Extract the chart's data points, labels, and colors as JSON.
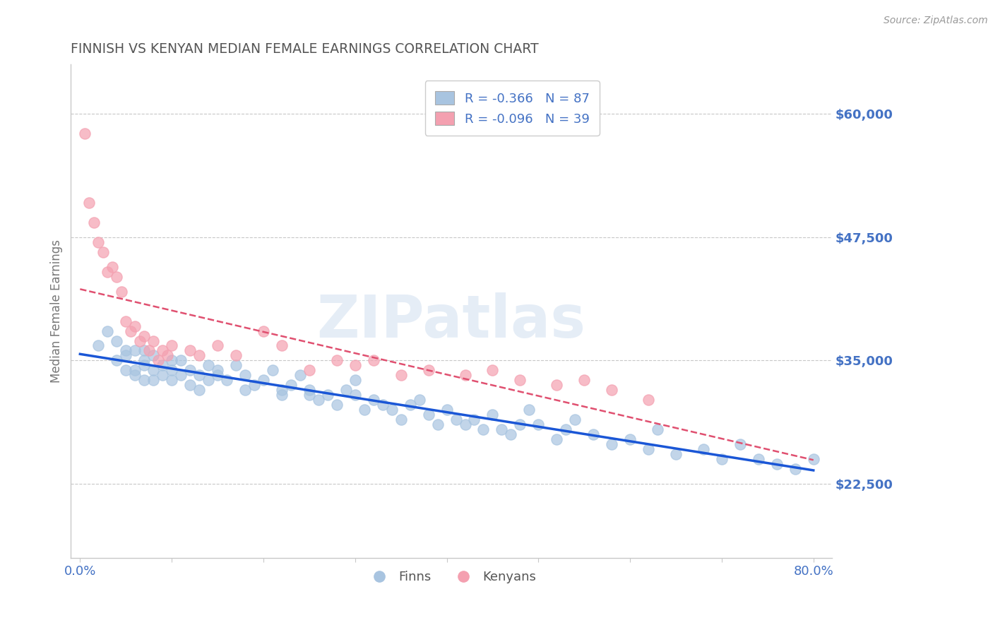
{
  "title": "FINNISH VS KENYAN MEDIAN FEMALE EARNINGS CORRELATION CHART",
  "source": "Source: ZipAtlas.com",
  "ylabel": "Median Female Earnings",
  "xlim": [
    -0.01,
    0.82
  ],
  "ylim": [
    15000,
    65000
  ],
  "yticks": [
    22500,
    35000,
    47500,
    60000
  ],
  "ytick_labels": [
    "$22,500",
    "$35,000",
    "$47,500",
    "$60,000"
  ],
  "xticks": [
    0.0,
    0.1,
    0.2,
    0.3,
    0.4,
    0.5,
    0.6,
    0.7,
    0.8
  ],
  "xtick_labels_show": [
    "0.0%",
    "",
    "",
    "",
    "",
    "",
    "",
    "",
    "80.0%"
  ],
  "finns_color": "#a8c4e0",
  "kenyans_color": "#f4a0b0",
  "finns_line_color": "#1a56d6",
  "kenyans_line_color": "#e05070",
  "grid_color": "#c8c8c8",
  "background_color": "#ffffff",
  "legend_r_finns": "R = -0.366",
  "legend_n_finns": "N = 87",
  "legend_r_kenyans": "R = -0.096",
  "legend_n_kenyans": "N = 39",
  "finns_label": "Finns",
  "kenyans_label": "Kenyans",
  "watermark": "ZIPatlas",
  "title_color": "#555555",
  "axis_label_color": "#777777",
  "tick_label_color_right": "#4472c4",
  "tick_label_color_x": "#4472c4",
  "finns_x": [
    0.02,
    0.03,
    0.04,
    0.04,
    0.05,
    0.05,
    0.05,
    0.06,
    0.06,
    0.06,
    0.07,
    0.07,
    0.07,
    0.07,
    0.08,
    0.08,
    0.08,
    0.09,
    0.09,
    0.1,
    0.1,
    0.1,
    0.11,
    0.11,
    0.12,
    0.12,
    0.13,
    0.13,
    0.14,
    0.14,
    0.15,
    0.15,
    0.16,
    0.17,
    0.18,
    0.18,
    0.19,
    0.2,
    0.21,
    0.22,
    0.22,
    0.23,
    0.24,
    0.25,
    0.25,
    0.26,
    0.27,
    0.28,
    0.29,
    0.3,
    0.3,
    0.31,
    0.32,
    0.33,
    0.34,
    0.35,
    0.36,
    0.37,
    0.38,
    0.39,
    0.4,
    0.41,
    0.42,
    0.43,
    0.44,
    0.45,
    0.46,
    0.47,
    0.48,
    0.49,
    0.5,
    0.52,
    0.53,
    0.54,
    0.56,
    0.58,
    0.6,
    0.62,
    0.63,
    0.65,
    0.68,
    0.7,
    0.72,
    0.74,
    0.76,
    0.78,
    0.8
  ],
  "finns_y": [
    36500,
    38000,
    37000,
    35000,
    36000,
    34000,
    35500,
    34000,
    36000,
    33500,
    34500,
    36000,
    35000,
    33000,
    34000,
    35500,
    33000,
    34500,
    33500,
    35000,
    33000,
    34000,
    33500,
    35000,
    32500,
    34000,
    33500,
    32000,
    34500,
    33000,
    34000,
    33500,
    33000,
    34500,
    32000,
    33500,
    32500,
    33000,
    34000,
    31500,
    32000,
    32500,
    33500,
    31500,
    32000,
    31000,
    31500,
    30500,
    32000,
    31500,
    33000,
    30000,
    31000,
    30500,
    30000,
    29000,
    30500,
    31000,
    29500,
    28500,
    30000,
    29000,
    28500,
    29000,
    28000,
    29500,
    28000,
    27500,
    28500,
    30000,
    28500,
    27000,
    28000,
    29000,
    27500,
    26500,
    27000,
    26000,
    28000,
    25500,
    26000,
    25000,
    26500,
    25000,
    24500,
    24000,
    25000
  ],
  "kenyans_x": [
    0.005,
    0.01,
    0.015,
    0.02,
    0.025,
    0.03,
    0.035,
    0.04,
    0.045,
    0.05,
    0.055,
    0.06,
    0.065,
    0.07,
    0.075,
    0.08,
    0.085,
    0.09,
    0.095,
    0.1,
    0.12,
    0.13,
    0.15,
    0.17,
    0.2,
    0.22,
    0.25,
    0.28,
    0.3,
    0.32,
    0.35,
    0.38,
    0.42,
    0.45,
    0.48,
    0.52,
    0.55,
    0.58,
    0.62
  ],
  "kenyans_y": [
    58000,
    51000,
    49000,
    47000,
    46000,
    44000,
    44500,
    43500,
    42000,
    39000,
    38000,
    38500,
    37000,
    37500,
    36000,
    37000,
    35000,
    36000,
    35500,
    36500,
    36000,
    35500,
    36500,
    35500,
    38000,
    36500,
    34000,
    35000,
    34500,
    35000,
    33500,
    34000,
    33500,
    34000,
    33000,
    32500,
    33000,
    32000,
    31000
  ]
}
